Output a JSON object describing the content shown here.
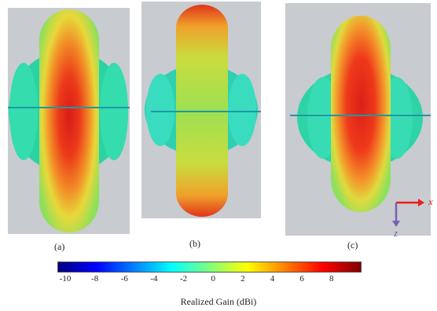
{
  "captions": [
    "(a)",
    "(b)",
    "(c)"
  ],
  "colorbar": {
    "title": "Realized Gain (dBi)",
    "ticks": [
      "-10",
      "-8",
      "-6",
      "-4",
      "-2",
      "0",
      "2",
      "4",
      "6",
      "8"
    ],
    "min": -10,
    "max": 9.5,
    "colormap": [
      "#00007f",
      "#0000ff",
      "#007fff",
      "#00ffff",
      "#7fff7f",
      "#ffff00",
      "#ff7f00",
      "#ff0000",
      "#7f0000"
    ]
  },
  "axes": {
    "x_label": "x",
    "z_label": "z",
    "x_color": "#e8201a",
    "z_color": "#7b5fb0"
  },
  "colors": {
    "panel_bg": "#c9ccd0",
    "side_lobe": "#2fd6a6",
    "main_lobe_center": "#e0251a",
    "main_lobe_edge": "#86e05a",
    "axis_line": "#1f9aa8"
  }
}
